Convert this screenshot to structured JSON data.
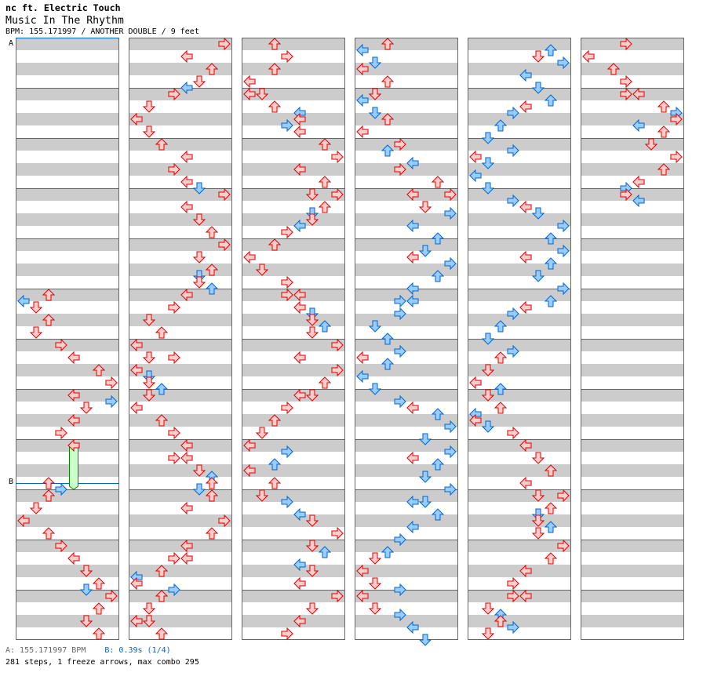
{
  "header": {
    "title": "nc ft. Electric Touch",
    "song": "Music In The Rhythm",
    "info": "BPM: 155.171997 / ANOTHER DOUBLE / 9 feet"
  },
  "markers": {
    "a_label": "A",
    "b_label": "B"
  },
  "footer": {
    "bpm_text": "A: 155.171997 BPM",
    "stop_text": "B: 0.39s (1/4)",
    "summary": "281 steps, 1 freeze arrows, max combo 295"
  },
  "colors": {
    "quarter_stroke": "#dd0000",
    "quarter_fill": "#ffcccc",
    "eighth_stroke": "#0066cc",
    "eighth_fill": "#99ccff",
    "freeze_fill": "#ccffcc",
    "freeze_stroke": "#008800",
    "marker": "#0066cc"
  },
  "chart_data": {
    "type": "step-chart",
    "measures_per_column": 12,
    "lanes": [
      "P1-left",
      "P1-down",
      "P1-up",
      "P1-right",
      "P2-left",
      "P2-down",
      "P2-up",
      "P2-right"
    ],
    "note_format": "[measure, eighth, lane]",
    "markers": [
      {
        "label": "A",
        "column": 0,
        "measure": 0,
        "eighth": 0
      },
      {
        "label": "B",
        "column": 0,
        "measure": 8,
        "eighth": 7
      }
    ],
    "freezes": [
      {
        "column": 0,
        "measure": 8,
        "eighth": 0,
        "lane": 4,
        "length_eighths": 7
      }
    ],
    "columns": [
      [
        [
          5,
          0,
          2
        ],
        [
          5,
          1,
          0
        ],
        [
          5,
          2,
          1
        ],
        [
          5,
          4,
          2
        ],
        [
          5,
          6,
          1
        ],
        [
          6,
          0,
          3
        ],
        [
          6,
          2,
          4
        ],
        [
          6,
          4,
          6
        ],
        [
          6,
          6,
          7
        ],
        [
          7,
          0,
          4
        ],
        [
          7,
          1,
          7
        ],
        [
          7,
          2,
          5
        ],
        [
          7,
          4,
          4
        ],
        [
          7,
          6,
          3
        ],
        [
          8,
          0,
          4
        ],
        [
          8,
          6,
          2
        ],
        [
          8,
          7,
          3
        ],
        [
          9,
          0,
          2
        ],
        [
          9,
          2,
          1
        ],
        [
          9,
          4,
          0
        ],
        [
          9,
          6,
          2
        ],
        [
          10,
          0,
          3
        ],
        [
          10,
          2,
          4
        ],
        [
          10,
          4,
          5
        ],
        [
          10,
          6,
          6
        ],
        [
          10,
          7,
          5
        ],
        [
          11,
          0,
          7
        ],
        [
          11,
          2,
          6
        ],
        [
          11,
          4,
          5
        ],
        [
          11,
          6,
          6
        ]
      ],
      [
        [
          0,
          0,
          7
        ],
        [
          0,
          2,
          4
        ],
        [
          0,
          4,
          6
        ],
        [
          0,
          6,
          5
        ],
        [
          0,
          7,
          4
        ],
        [
          1,
          0,
          3
        ],
        [
          1,
          2,
          1
        ],
        [
          1,
          4,
          0
        ],
        [
          1,
          6,
          1
        ],
        [
          2,
          0,
          2
        ],
        [
          2,
          2,
          4
        ],
        [
          2,
          4,
          3
        ],
        [
          2,
          6,
          4
        ],
        [
          2,
          7,
          5
        ],
        [
          3,
          0,
          7
        ],
        [
          3,
          2,
          4
        ],
        [
          3,
          4,
          5
        ],
        [
          3,
          6,
          6
        ],
        [
          4,
          0,
          7
        ],
        [
          4,
          2,
          5
        ],
        [
          4,
          4,
          6
        ],
        [
          4,
          5,
          5
        ],
        [
          4,
          6,
          5
        ],
        [
          4,
          7,
          6
        ],
        [
          5,
          0,
          4
        ],
        [
          5,
          2,
          3
        ],
        [
          5,
          4,
          1
        ],
        [
          5,
          6,
          2
        ],
        [
          6,
          0,
          0
        ],
        [
          6,
          2,
          1
        ],
        [
          6,
          2,
          3
        ],
        [
          6,
          4,
          0
        ],
        [
          6,
          5,
          1
        ],
        [
          6,
          6,
          1
        ],
        [
          6,
          7,
          2
        ],
        [
          7,
          0,
          1
        ],
        [
          7,
          2,
          0
        ],
        [
          7,
          4,
          2
        ],
        [
          7,
          6,
          3
        ],
        [
          8,
          0,
          4
        ],
        [
          8,
          2,
          3
        ],
        [
          8,
          2,
          4
        ],
        [
          8,
          4,
          5
        ],
        [
          8,
          5,
          6
        ],
        [
          8,
          6,
          6
        ],
        [
          8,
          7,
          5
        ],
        [
          9,
          0,
          6
        ],
        [
          9,
          2,
          4
        ],
        [
          9,
          4,
          7
        ],
        [
          9,
          6,
          6
        ],
        [
          10,
          0,
          4
        ],
        [
          10,
          2,
          3
        ],
        [
          10,
          2,
          4
        ],
        [
          10,
          4,
          2
        ],
        [
          10,
          5,
          0
        ],
        [
          10,
          6,
          0
        ],
        [
          10,
          7,
          3
        ],
        [
          11,
          0,
          2
        ],
        [
          11,
          2,
          1
        ],
        [
          11,
          4,
          0
        ],
        [
          11,
          4,
          1
        ],
        [
          11,
          6,
          2
        ]
      ],
      [
        [
          0,
          0,
          2
        ],
        [
          0,
          2,
          3
        ],
        [
          0,
          4,
          2
        ],
        [
          0,
          6,
          0
        ],
        [
          1,
          0,
          0
        ],
        [
          1,
          0,
          1
        ],
        [
          1,
          2,
          2
        ],
        [
          1,
          3,
          4
        ],
        [
          1,
          4,
          4
        ],
        [
          1,
          5,
          3
        ],
        [
          1,
          6,
          4
        ],
        [
          2,
          0,
          6
        ],
        [
          2,
          2,
          7
        ],
        [
          2,
          4,
          4
        ],
        [
          2,
          6,
          6
        ],
        [
          3,
          0,
          5
        ],
        [
          3,
          0,
          7
        ],
        [
          3,
          2,
          6
        ],
        [
          3,
          3,
          5
        ],
        [
          3,
          4,
          5
        ],
        [
          3,
          5,
          4
        ],
        [
          3,
          6,
          3
        ],
        [
          4,
          0,
          2
        ],
        [
          4,
          2,
          0
        ],
        [
          4,
          4,
          1
        ],
        [
          4,
          6,
          3
        ],
        [
          5,
          0,
          3
        ],
        [
          5,
          0,
          4
        ],
        [
          5,
          2,
          4
        ],
        [
          5,
          3,
          5
        ],
        [
          5,
          4,
          5
        ],
        [
          5,
          5,
          6
        ],
        [
          5,
          6,
          5
        ],
        [
          6,
          0,
          7
        ],
        [
          6,
          2,
          4
        ],
        [
          6,
          4,
          7
        ],
        [
          6,
          6,
          6
        ],
        [
          7,
          0,
          4
        ],
        [
          7,
          0,
          5
        ],
        [
          7,
          2,
          3
        ],
        [
          7,
          4,
          2
        ],
        [
          7,
          6,
          1
        ],
        [
          8,
          0,
          0
        ],
        [
          8,
          1,
          3
        ],
        [
          8,
          3,
          2
        ],
        [
          8,
          4,
          0
        ],
        [
          8,
          6,
          2
        ],
        [
          9,
          0,
          1
        ],
        [
          9,
          1,
          3
        ],
        [
          9,
          3,
          4
        ],
        [
          9,
          4,
          5
        ],
        [
          9,
          6,
          7
        ],
        [
          10,
          0,
          5
        ],
        [
          10,
          1,
          6
        ],
        [
          10,
          3,
          4
        ],
        [
          10,
          4,
          5
        ],
        [
          10,
          6,
          4
        ],
        [
          11,
          0,
          7
        ],
        [
          11,
          2,
          5
        ],
        [
          11,
          4,
          4
        ],
        [
          11,
          6,
          3
        ]
      ],
      [
        [
          0,
          0,
          2
        ],
        [
          0,
          1,
          0
        ],
        [
          0,
          3,
          1
        ],
        [
          0,
          4,
          0
        ],
        [
          0,
          6,
          2
        ],
        [
          1,
          0,
          1
        ],
        [
          1,
          1,
          0
        ],
        [
          1,
          3,
          1
        ],
        [
          1,
          4,
          2
        ],
        [
          1,
          6,
          0
        ],
        [
          2,
          0,
          3
        ],
        [
          2,
          1,
          2
        ],
        [
          2,
          3,
          4
        ],
        [
          2,
          4,
          3
        ],
        [
          2,
          6,
          6
        ],
        [
          3,
          0,
          4
        ],
        [
          3,
          0,
          7
        ],
        [
          3,
          2,
          5
        ],
        [
          3,
          3,
          7
        ],
        [
          3,
          5,
          4
        ],
        [
          3,
          7,
          6
        ],
        [
          4,
          1,
          5
        ],
        [
          4,
          2,
          4
        ],
        [
          4,
          3,
          7
        ],
        [
          4,
          5,
          6
        ],
        [
          4,
          7,
          4
        ],
        [
          5,
          1,
          3
        ],
        [
          5,
          1,
          4
        ],
        [
          5,
          3,
          3
        ],
        [
          5,
          5,
          1
        ],
        [
          5,
          7,
          2
        ],
        [
          6,
          1,
          3
        ],
        [
          6,
          2,
          0
        ],
        [
          6,
          3,
          2
        ],
        [
          6,
          5,
          0
        ],
        [
          6,
          7,
          1
        ],
        [
          7,
          1,
          3
        ],
        [
          7,
          2,
          4
        ],
        [
          7,
          3,
          6
        ],
        [
          7,
          5,
          7
        ],
        [
          7,
          7,
          5
        ],
        [
          8,
          1,
          7
        ],
        [
          8,
          2,
          4
        ],
        [
          8,
          3,
          6
        ],
        [
          8,
          5,
          5
        ],
        [
          8,
          7,
          7
        ],
        [
          9,
          1,
          4
        ],
        [
          9,
          1,
          5
        ],
        [
          9,
          3,
          6
        ],
        [
          9,
          5,
          4
        ],
        [
          9,
          7,
          3
        ],
        [
          10,
          1,
          2
        ],
        [
          10,
          2,
          1
        ],
        [
          10,
          4,
          0
        ],
        [
          10,
          6,
          1
        ],
        [
          10,
          7,
          3
        ],
        [
          11,
          0,
          0
        ],
        [
          11,
          2,
          1
        ],
        [
          11,
          3,
          3
        ],
        [
          11,
          5,
          4
        ],
        [
          11,
          7,
          5
        ]
      ],
      [
        [
          0,
          1,
          6
        ],
        [
          0,
          2,
          5
        ],
        [
          0,
          3,
          7
        ],
        [
          0,
          5,
          4
        ],
        [
          0,
          7,
          5
        ],
        [
          1,
          1,
          6
        ],
        [
          1,
          2,
          4
        ],
        [
          1,
          3,
          3
        ],
        [
          1,
          5,
          2
        ],
        [
          1,
          7,
          1
        ],
        [
          2,
          1,
          3
        ],
        [
          2,
          2,
          0
        ],
        [
          2,
          3,
          1
        ],
        [
          2,
          5,
          0
        ],
        [
          2,
          7,
          1
        ],
        [
          3,
          1,
          3
        ],
        [
          3,
          2,
          4
        ],
        [
          3,
          3,
          5
        ],
        [
          3,
          5,
          7
        ],
        [
          3,
          7,
          6
        ],
        [
          4,
          1,
          7
        ],
        [
          4,
          2,
          4
        ],
        [
          4,
          3,
          6
        ],
        [
          4,
          5,
          5
        ],
        [
          4,
          7,
          7
        ],
        [
          5,
          1,
          6
        ],
        [
          5,
          2,
          4
        ],
        [
          5,
          3,
          3
        ],
        [
          5,
          5,
          2
        ],
        [
          5,
          7,
          1
        ],
        [
          6,
          1,
          3
        ],
        [
          6,
          2,
          2
        ],
        [
          6,
          4,
          1
        ],
        [
          6,
          6,
          0
        ],
        [
          6,
          7,
          2
        ],
        [
          7,
          0,
          1
        ],
        [
          7,
          2,
          2
        ],
        [
          7,
          3,
          0
        ],
        [
          7,
          4,
          0
        ],
        [
          7,
          5,
          1
        ],
        [
          7,
          6,
          3
        ],
        [
          8,
          0,
          4
        ],
        [
          8,
          2,
          5
        ],
        [
          8,
          4,
          6
        ],
        [
          8,
          6,
          4
        ],
        [
          9,
          0,
          5
        ],
        [
          9,
          0,
          7
        ],
        [
          9,
          2,
          6
        ],
        [
          9,
          3,
          5
        ],
        [
          9,
          4,
          5
        ],
        [
          9,
          5,
          6
        ],
        [
          9,
          6,
          5
        ],
        [
          10,
          0,
          7
        ],
        [
          10,
          2,
          6
        ],
        [
          10,
          4,
          4
        ],
        [
          10,
          6,
          3
        ],
        [
          11,
          0,
          3
        ],
        [
          11,
          0,
          4
        ],
        [
          11,
          2,
          1
        ],
        [
          11,
          3,
          2
        ],
        [
          11,
          4,
          2
        ],
        [
          11,
          5,
          3
        ],
        [
          11,
          6,
          1
        ]
      ],
      [
        [
          0,
          0,
          3
        ],
        [
          0,
          2,
          0
        ],
        [
          0,
          4,
          2
        ],
        [
          0,
          6,
          3
        ],
        [
          1,
          0,
          3
        ],
        [
          1,
          0,
          4
        ],
        [
          1,
          2,
          6
        ],
        [
          1,
          3,
          7
        ],
        [
          1,
          4,
          7
        ],
        [
          1,
          5,
          4
        ],
        [
          1,
          6,
          6
        ],
        [
          2,
          0,
          5
        ],
        [
          2,
          2,
          7
        ],
        [
          2,
          4,
          6
        ],
        [
          2,
          6,
          4
        ],
        [
          2,
          7,
          3
        ],
        [
          3,
          0,
          3
        ],
        [
          3,
          1,
          4
        ]
      ]
    ]
  }
}
